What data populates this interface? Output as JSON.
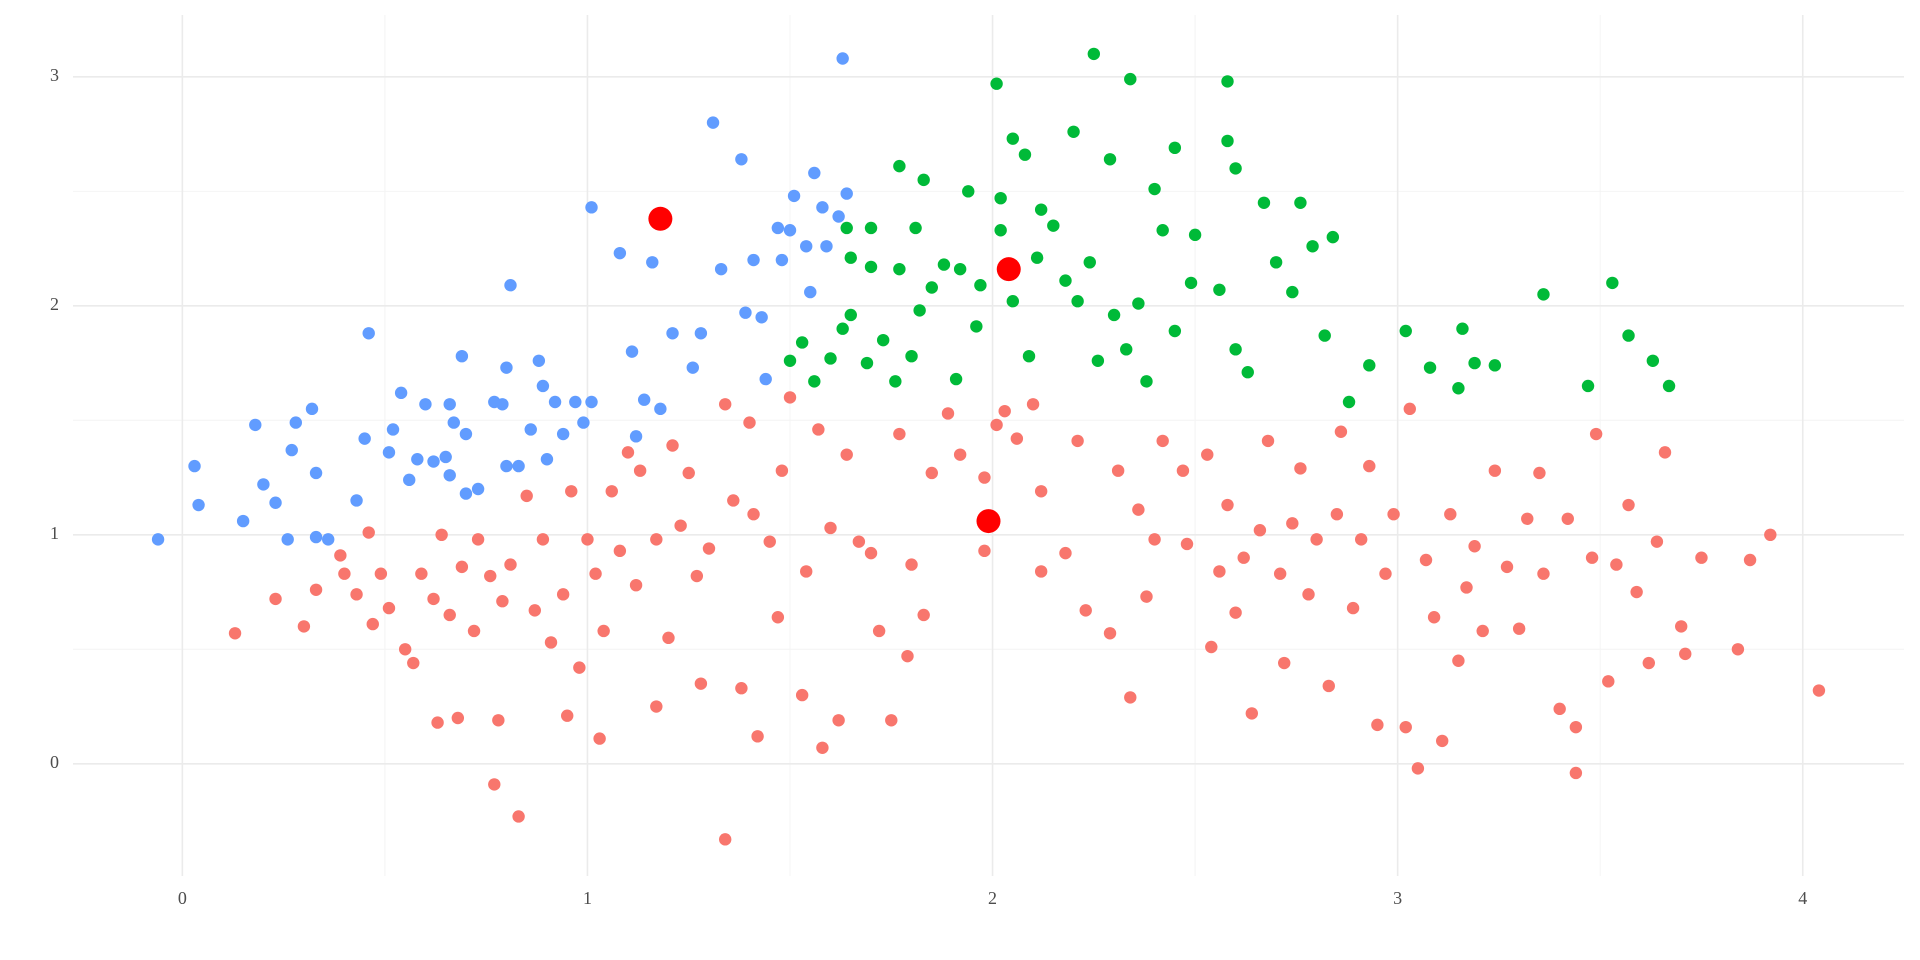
{
  "chart_data": {
    "type": "scatter",
    "xlim": [
      -0.27,
      4.25
    ],
    "ylim": [
      -0.49,
      3.27
    ],
    "xticks": [
      0,
      1,
      2,
      3,
      4
    ],
    "yticks": [
      0,
      1,
      2,
      3
    ],
    "x_minor_grid": [
      0.5,
      1.5,
      2.5,
      3.5
    ],
    "y_minor_grid": [
      0.5,
      1.5,
      2.5
    ],
    "grid": true,
    "series": [
      {
        "color": "#F8766D",
        "x": [
          0.13,
          0.23,
          0.3,
          0.33,
          0.39,
          0.4,
          0.43,
          0.46,
          0.47,
          0.49,
          0.51,
          0.55,
          0.57,
          0.59,
          0.62,
          0.63,
          0.64,
          0.66,
          0.68,
          0.69,
          0.72,
          0.73,
          0.76,
          0.77,
          0.78,
          0.79,
          0.81,
          0.83,
          0.85,
          0.87,
          0.89,
          0.91,
          0.94,
          0.95,
          0.96,
          0.98,
          1.0,
          1.02,
          1.03,
          1.04,
          1.06,
          1.08,
          1.1,
          1.12,
          1.13,
          1.17,
          1.17,
          1.2,
          1.21,
          1.23,
          1.25,
          1.27,
          1.28,
          1.3,
          1.34,
          1.34,
          1.36,
          1.38,
          1.4,
          1.41,
          1.42,
          1.45,
          1.47,
          1.48,
          1.5,
          1.53,
          1.54,
          1.57,
          1.58,
          1.6,
          1.62,
          1.64,
          1.67,
          1.7,
          1.72,
          1.75,
          1.77,
          1.79,
          1.8,
          1.83,
          1.85,
          1.89,
          1.92,
          1.98,
          1.98,
          2.01,
          2.03,
          2.06,
          2.1,
          2.12,
          2.12,
          2.18,
          2.21,
          2.23,
          2.29,
          2.31,
          2.34,
          2.36,
          2.38,
          2.4,
          2.42,
          2.47,
          2.48,
          2.53,
          2.54,
          2.56,
          2.58,
          2.6,
          2.62,
          2.64,
          2.66,
          2.68,
          2.71,
          2.72,
          2.74,
          2.76,
          2.78,
          2.8,
          2.83,
          2.85,
          2.86,
          2.89,
          2.91,
          2.93,
          2.95,
          2.97,
          2.99,
          3.02,
          3.03,
          3.05,
          3.07,
          3.09,
          3.11,
          3.13,
          3.15,
          3.17,
          3.19,
          3.21,
          3.24,
          3.27,
          3.3,
          3.32,
          3.35,
          3.36,
          3.4,
          3.42,
          3.44,
          3.44,
          3.48,
          3.49,
          3.52,
          3.54,
          3.57,
          3.59,
          3.62,
          3.64,
          3.66,
          3.7,
          3.71,
          3.75,
          3.84,
          3.87,
          3.92,
          4.04
        ],
        "y": [
          0.57,
          0.72,
          0.6,
          0.76,
          0.91,
          0.83,
          0.74,
          1.01,
          0.61,
          0.83,
          0.68,
          0.5,
          0.44,
          0.83,
          0.72,
          0.18,
          1.0,
          0.65,
          0.2,
          0.86,
          0.58,
          0.98,
          0.82,
          -0.09,
          0.19,
          0.71,
          0.87,
          -0.23,
          1.17,
          0.67,
          0.98,
          0.53,
          0.74,
          0.21,
          1.19,
          0.42,
          0.98,
          0.83,
          0.11,
          0.58,
          1.19,
          0.93,
          1.36,
          0.78,
          1.28,
          0.25,
          0.98,
          0.55,
          1.39,
          1.04,
          1.27,
          0.82,
          0.35,
          0.94,
          -0.33,
          1.57,
          1.15,
          0.33,
          1.49,
          1.09,
          0.12,
          0.97,
          0.64,
          1.28,
          1.6,
          0.3,
          0.84,
          1.46,
          0.07,
          1.03,
          0.19,
          1.35,
          0.97,
          0.92,
          0.58,
          0.19,
          1.44,
          0.47,
          0.87,
          0.65,
          1.27,
          1.53,
          1.35,
          1.25,
          0.93,
          1.48,
          1.54,
          1.42,
          1.57,
          0.84,
          1.19,
          0.92,
          1.41,
          0.67,
          0.57,
          1.28,
          0.29,
          1.11,
          0.73,
          0.98,
          1.41,
          1.28,
          0.96,
          1.35,
          0.51,
          0.84,
          1.13,
          0.66,
          0.9,
          0.22,
          1.02,
          1.41,
          0.83,
          0.44,
          1.05,
          1.29,
          0.74,
          0.98,
          0.34,
          1.09,
          1.45,
          0.68,
          0.98,
          1.3,
          0.17,
          0.83,
          1.09,
          0.16,
          1.55,
          -0.02,
          0.89,
          0.64,
          0.1,
          1.09,
          0.45,
          0.77,
          0.95,
          0.58,
          1.28,
          0.86,
          0.59,
          1.07,
          1.27,
          0.83,
          0.24,
          1.07,
          -0.04,
          0.16,
          0.9,
          1.44,
          0.36,
          0.87,
          1.13,
          0.75,
          0.44,
          0.97,
          1.36,
          0.6,
          0.48,
          0.9,
          0.5,
          0.89,
          1.0,
          0.32
        ]
      },
      {
        "color": "#619CFF",
        "x": [
          -0.06,
          0.03,
          0.04,
          0.15,
          0.18,
          0.2,
          0.23,
          0.26,
          0.28,
          0.27,
          0.32,
          0.33,
          0.33,
          0.36,
          0.43,
          0.45,
          0.46,
          0.51,
          0.52,
          0.54,
          0.56,
          0.58,
          0.6,
          0.62,
          0.65,
          0.66,
          0.66,
          0.67,
          0.69,
          0.7,
          0.7,
          0.73,
          0.77,
          0.79,
          0.8,
          0.81,
          0.8,
          0.83,
          0.86,
          0.88,
          0.89,
          0.9,
          0.92,
          0.94,
          0.97,
          0.99,
          1.01,
          1.01,
          1.08,
          1.11,
          1.12,
          1.14,
          1.16,
          1.18,
          1.21,
          1.26,
          1.28,
          1.31,
          1.33,
          1.38,
          1.39,
          1.41,
          1.43,
          1.44,
          1.47,
          1.48,
          1.5,
          1.51,
          1.54,
          1.55,
          1.56,
          1.58,
          1.59,
          1.62,
          1.63,
          1.64
        ],
        "y": [
          0.98,
          1.3,
          1.13,
          1.06,
          1.48,
          1.22,
          1.14,
          0.98,
          1.49,
          1.37,
          1.55,
          1.27,
          0.99,
          0.98,
          1.15,
          1.42,
          1.88,
          1.36,
          1.46,
          1.62,
          1.24,
          1.33,
          1.57,
          1.32,
          1.34,
          1.26,
          1.57,
          1.49,
          1.78,
          1.44,
          1.18,
          1.2,
          1.58,
          1.57,
          1.73,
          2.09,
          1.3,
          1.3,
          1.46,
          1.76,
          1.65,
          1.33,
          1.58,
          1.44,
          1.58,
          1.49,
          1.58,
          2.43,
          2.23,
          1.8,
          1.43,
          1.59,
          2.19,
          1.55,
          1.88,
          1.73,
          1.88,
          2.8,
          2.16,
          2.64,
          1.97,
          2.2,
          1.95,
          1.68,
          2.34,
          2.2,
          2.33,
          2.48,
          2.26,
          2.06,
          2.58,
          2.43,
          2.26,
          2.39,
          3.08,
          2.49
        ]
      },
      {
        "color": "#00BA38",
        "x": [
          1.5,
          1.53,
          1.56,
          1.6,
          1.63,
          1.64,
          1.65,
          1.65,
          1.69,
          1.7,
          1.7,
          1.73,
          1.76,
          1.77,
          1.77,
          1.8,
          1.81,
          1.82,
          1.83,
          1.85,
          1.88,
          1.91,
          1.92,
          1.94,
          1.96,
          1.97,
          2.01,
          2.02,
          2.02,
          2.05,
          2.05,
          2.08,
          2.09,
          2.11,
          2.12,
          2.15,
          2.18,
          2.2,
          2.21,
          2.24,
          2.25,
          2.26,
          2.29,
          2.3,
          2.33,
          2.34,
          2.36,
          2.38,
          2.4,
          2.42,
          2.45,
          2.45,
          2.49,
          2.5,
          2.56,
          2.58,
          2.58,
          2.6,
          2.6,
          2.63,
          2.67,
          2.7,
          2.74,
          2.76,
          2.79,
          2.82,
          2.84,
          2.88,
          2.93,
          3.02,
          3.08,
          3.15,
          3.16,
          3.19,
          3.24,
          3.36,
          3.53,
          3.57,
          3.63,
          3.67,
          3.47
        ],
        "y": [
          1.76,
          1.84,
          1.67,
          1.77,
          1.9,
          2.34,
          2.21,
          1.96,
          1.75,
          2.34,
          2.17,
          1.85,
          1.67,
          2.61,
          2.16,
          1.78,
          2.34,
          1.98,
          2.55,
          2.08,
          2.18,
          1.68,
          2.16,
          2.5,
          1.91,
          2.09,
          2.97,
          2.33,
          2.47,
          2.02,
          2.73,
          2.66,
          1.78,
          2.21,
          2.42,
          2.35,
          2.11,
          2.76,
          2.02,
          2.19,
          3.1,
          1.76,
          2.64,
          1.96,
          1.81,
          2.99,
          2.01,
          1.67,
          2.51,
          2.33,
          2.69,
          1.89,
          2.1,
          2.31,
          2.07,
          2.98,
          2.72,
          2.6,
          1.81,
          1.71,
          2.45,
          2.19,
          2.06,
          2.45,
          2.26,
          1.87,
          2.3,
          1.58,
          1.74,
          1.89,
          1.73,
          1.64,
          1.9,
          1.75,
          1.74,
          2.05,
          2.1,
          1.87,
          1.76,
          1.65,
          1.65
        ]
      },
      {
        "color": "#FF0000",
        "x": [
          1.18,
          2.04,
          1.99
        ],
        "y": [
          2.38,
          2.16,
          1.06
        ]
      }
    ]
  }
}
